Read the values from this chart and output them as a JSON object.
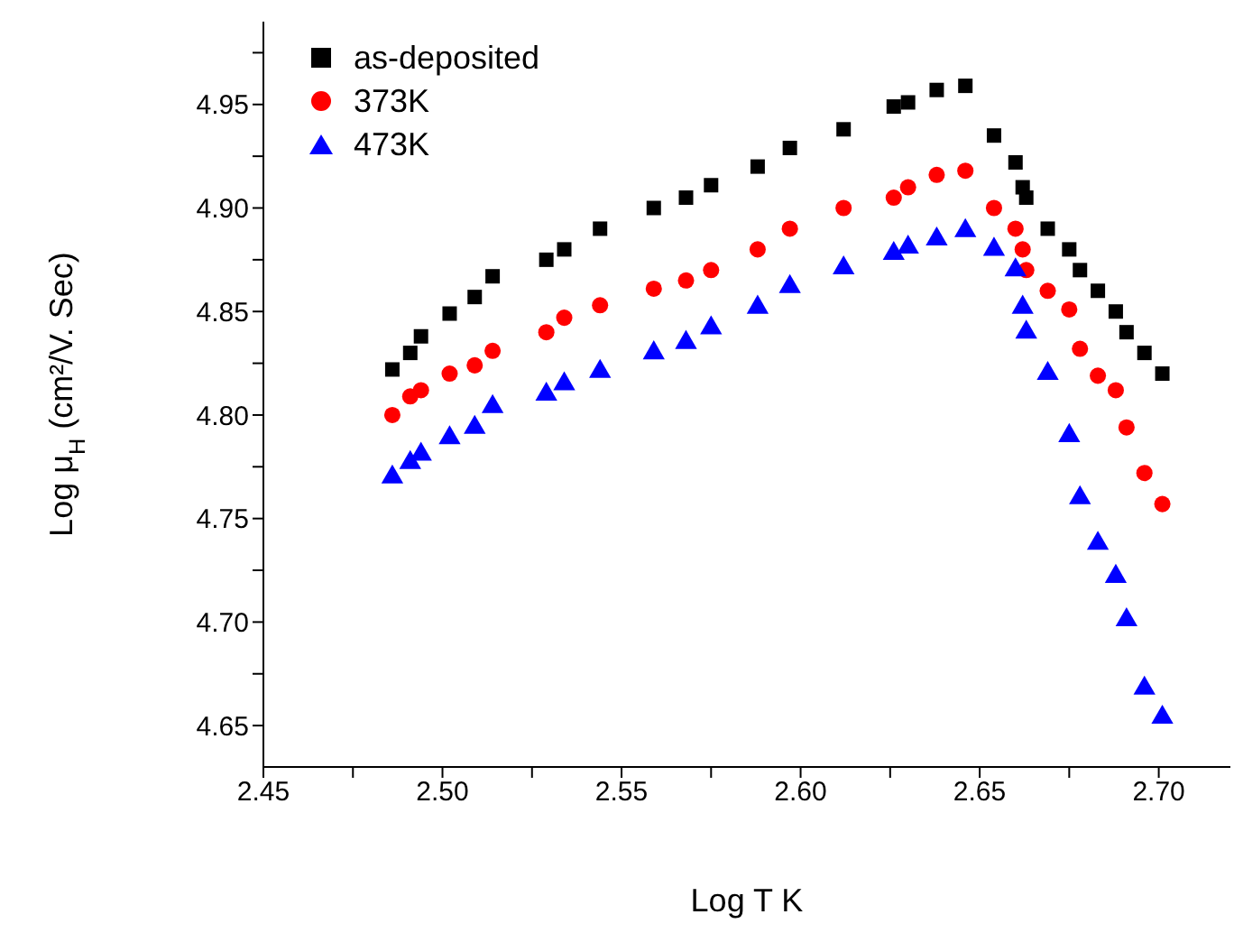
{
  "chart_data": {
    "type": "scatter",
    "xlabel": "Log T K",
    "ylabel": "Log μ$_{H}$ (cm²/V. Sec)",
    "x": [
      2.486,
      2.491,
      2.494,
      2.502,
      2.509,
      2.514,
      2.529,
      2.534,
      2.544,
      2.559,
      2.568,
      2.575,
      2.588,
      2.597,
      2.612,
      2.626,
      2.63,
      2.638,
      2.646,
      2.654,
      2.66,
      2.662,
      2.663,
      2.669,
      2.675,
      2.678,
      2.683,
      2.688,
      2.691,
      2.696,
      2.701
    ],
    "series": [
      {
        "name": "as-deposited",
        "color": "#000000",
        "marker": "square",
        "values": [
          4.822,
          4.83,
          4.838,
          4.849,
          4.857,
          4.867,
          4.875,
          4.88,
          4.89,
          4.9,
          4.905,
          4.911,
          4.92,
          4.929,
          4.938,
          4.949,
          4.951,
          4.957,
          4.959,
          4.935,
          4.922,
          4.91,
          4.905,
          4.89,
          4.88,
          4.87,
          4.86,
          4.85,
          4.84,
          4.83,
          4.82
        ]
      },
      {
        "name": "373K",
        "color": "#ff0000",
        "marker": "circle",
        "values": [
          4.8,
          4.809,
          4.812,
          4.82,
          4.824,
          4.831,
          4.84,
          4.847,
          4.853,
          4.861,
          4.865,
          4.87,
          4.88,
          4.89,
          4.9,
          4.905,
          4.91,
          4.916,
          4.918,
          4.9,
          4.89,
          4.88,
          4.87,
          4.86,
          4.851,
          4.832,
          4.819,
          4.812,
          4.794,
          4.772,
          4.757
        ]
      },
      {
        "name": "473K",
        "color": "#0000ff",
        "marker": "triangle",
        "values": [
          4.77,
          4.777,
          4.781,
          4.789,
          4.794,
          4.804,
          4.81,
          4.815,
          4.821,
          4.83,
          4.835,
          4.842,
          4.852,
          4.862,
          4.871,
          4.878,
          4.881,
          4.885,
          4.889,
          4.88,
          4.87,
          4.852,
          4.84,
          4.82,
          4.79,
          4.76,
          4.738,
          4.722,
          4.701,
          4.668,
          4.654
        ]
      }
    ],
    "xlim": [
      2.45,
      2.72
    ],
    "xticks": [
      {
        "value": 2.45,
        "label": "2.45"
      },
      {
        "value": 2.475,
        "label": null
      },
      {
        "value": 2.5,
        "label": "2.50"
      },
      {
        "value": 2.525,
        "label": null
      },
      {
        "value": 2.55,
        "label": "2.55"
      },
      {
        "value": 2.575,
        "label": null
      },
      {
        "value": 2.6,
        "label": "2.60"
      },
      {
        "value": 2.625,
        "label": null
      },
      {
        "value": 2.65,
        "label": "2.65"
      },
      {
        "value": 2.675,
        "label": null
      },
      {
        "value": 2.7,
        "label": "2.70"
      }
    ],
    "ylim": [
      4.63,
      4.99
    ],
    "yticks": [
      {
        "value": 4.65,
        "label": "4.65"
      },
      {
        "value": 4.675,
        "label": null
      },
      {
        "value": 4.7,
        "label": "4.70"
      },
      {
        "value": 4.725,
        "label": null
      },
      {
        "value": 4.75,
        "label": "4.75"
      },
      {
        "value": 4.775,
        "label": null
      },
      {
        "value": 4.8,
        "label": "4.80"
      },
      {
        "value": 4.825,
        "label": null
      },
      {
        "value": 4.85,
        "label": "4.85"
      },
      {
        "value": 4.875,
        "label": null
      },
      {
        "value": 4.9,
        "label": "4.90"
      },
      {
        "value": 4.925,
        "label": null
      },
      {
        "value": 4.95,
        "label": "4.95"
      },
      {
        "value": 4.975,
        "label": null
      }
    ],
    "grid": false,
    "legend": "top left"
  }
}
